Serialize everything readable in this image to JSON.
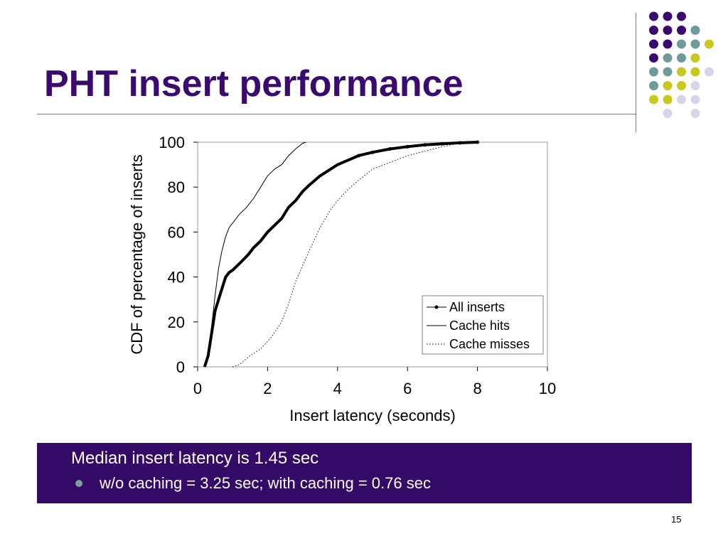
{
  "slide": {
    "title": "PHT insert performance",
    "page_number": "15"
  },
  "banner": {
    "headline": "Median insert latency is 1.45 sec",
    "bullet": "w/o caching = 3.25 sec;  with caching = 0.76 sec"
  },
  "decor": {
    "colors": {
      "purple": "#3a0a6e",
      "teal": "#6e9a9a",
      "yellow": "#c8c81e",
      "lavender": "#d7d5ea"
    },
    "grid": [
      [
        null,
        "purple",
        "purple",
        "purple",
        null
      ],
      [
        null,
        "purple",
        "purple",
        "purple",
        "teal"
      ],
      [
        null,
        "purple",
        "purple",
        "teal",
        "teal",
        "yellow"
      ],
      [
        null,
        "purple",
        "teal",
        "teal",
        "yellow"
      ],
      [
        null,
        "teal",
        "teal",
        "yellow",
        "yellow",
        "lavender"
      ],
      [
        null,
        "teal",
        "yellow",
        "yellow",
        "lavender"
      ],
      [
        null,
        "yellow",
        "yellow",
        "lavender",
        "lavender"
      ],
      [
        null,
        null,
        "lavender",
        null,
        "lavender"
      ]
    ]
  },
  "chart_data": {
    "type": "line",
    "title": "",
    "xlabel": "Insert latency (seconds)",
    "ylabel": "CDF of percentage of inserts",
    "xlim": [
      0,
      10
    ],
    "ylim": [
      0,
      100
    ],
    "xticks": [
      "0",
      "2",
      "4",
      "6",
      "8",
      "10"
    ],
    "yticks": [
      "0",
      "20",
      "40",
      "60",
      "80",
      "100"
    ],
    "legend_position": "bottom-right",
    "grid": false,
    "series": [
      {
        "name": "All inserts",
        "style": "thick-line-with-markers",
        "x": [
          0.2,
          0.3,
          0.4,
          0.5,
          0.6,
          0.7,
          0.8,
          0.9,
          1.0,
          1.2,
          1.45,
          1.6,
          1.8,
          2.0,
          2.2,
          2.4,
          2.6,
          2.8,
          3.0,
          3.2,
          3.5,
          3.8,
          4.0,
          4.3,
          4.6,
          5.0,
          5.5,
          6.0,
          6.5,
          7.0,
          7.5,
          8.0
        ],
        "y": [
          0,
          5,
          15,
          25,
          30,
          35,
          40,
          42,
          43,
          46,
          50,
          53,
          56,
          60,
          63,
          66,
          71,
          74,
          78,
          81,
          85,
          88,
          90,
          92,
          94,
          95.5,
          97,
          98,
          98.8,
          99.3,
          99.7,
          100
        ]
      },
      {
        "name": "Cache hits",
        "style": "thin-solid",
        "x": [
          0.2,
          0.3,
          0.4,
          0.5,
          0.6,
          0.7,
          0.8,
          0.9,
          1.0,
          1.2,
          1.4,
          1.6,
          1.8,
          2.0,
          2.2,
          2.4,
          2.6,
          2.8,
          3.0,
          3.1
        ],
        "y": [
          0,
          6,
          18,
          32,
          44,
          52,
          58,
          62,
          64,
          68,
          71,
          75,
          80,
          85,
          88,
          90,
          94,
          97,
          99.5,
          100
        ]
      },
      {
        "name": "Cache misses",
        "style": "dotted",
        "x": [
          1.0,
          1.2,
          1.5,
          1.8,
          2.1,
          2.4,
          2.6,
          2.8,
          3.0,
          3.2,
          3.5,
          3.8,
          4.0,
          4.3,
          4.6,
          5.0,
          5.5,
          6.0,
          6.5,
          7.0,
          7.3,
          7.5
        ],
        "y": [
          0,
          1,
          5,
          8,
          13,
          20,
          28,
          38,
          45,
          52,
          62,
          70,
          74,
          79,
          83,
          88,
          91,
          94,
          96,
          98,
          99,
          100
        ]
      }
    ]
  }
}
